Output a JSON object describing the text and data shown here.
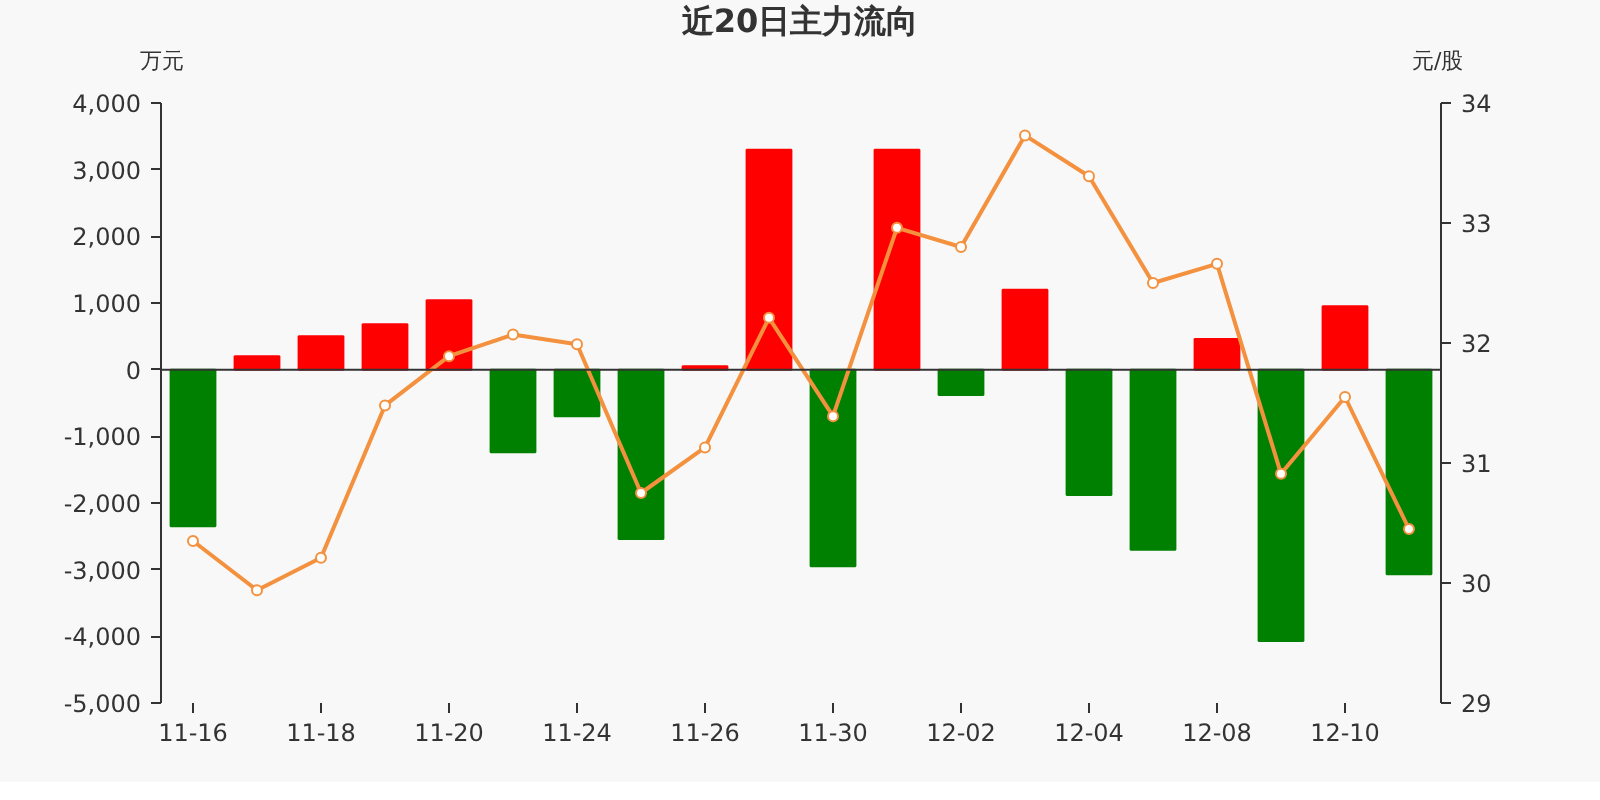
{
  "chart_data": {
    "type": "bar",
    "title": "近20日主力流向",
    "ylabel": "万元",
    "y2label": "元/股",
    "categories": [
      "11-16",
      null,
      "11-18",
      null,
      "11-20",
      null,
      "11-24",
      null,
      "11-26",
      null,
      "11-30",
      null,
      "12-02",
      null,
      "12-04",
      null,
      "12-08",
      null,
      "12-10",
      null
    ],
    "series": [
      {
        "values": [
          -2350,
          200,
          500,
          680,
          1040,
          -1240,
          -700,
          -2540,
          50,
          3300,
          -2950,
          3300,
          -380,
          1200,
          -1880,
          -2700,
          460,
          -4070,
          950,
          -3070
        ],
        "colors": [
          "#008000",
          "#ff0000",
          "#ff0000",
          "#ff0000",
          "#ff0000",
          "#008000",
          "#008000",
          "#008000",
          "#ff0000",
          "#ff0000",
          "#008000",
          "#ff0000",
          "#008000",
          "#ff0000",
          "#008000",
          "#008000",
          "#ff0000",
          "#008000",
          "#ff0000",
          "#008000"
        ]
      },
      {
        "type": "line",
        "axis": "y2",
        "color": "#f4913e",
        "marker": "circle",
        "values": [
          30.35,
          29.94,
          30.21,
          31.48,
          31.89,
          32.07,
          31.99,
          30.75,
          31.13,
          32.21,
          31.39,
          32.96,
          32.8,
          33.73,
          33.39,
          32.5,
          32.66,
          30.91,
          31.55,
          30.45
        ]
      }
    ],
    "ylim": [
      -5000,
      4000
    ],
    "yticks": [
      {
        "value": -5000,
        "label": "-5,000"
      },
      {
        "value": -4000,
        "label": "-4,000"
      },
      {
        "value": -3000,
        "label": "-3,000"
      },
      {
        "value": -2000,
        "label": "-2,000"
      },
      {
        "value": -1000,
        "label": "-1,000"
      },
      0,
      {
        "value": 1000,
        "label": "1,000"
      },
      {
        "value": 2000,
        "label": "2,000"
      },
      {
        "value": 3000,
        "label": "3,000"
      },
      {
        "value": 4000,
        "label": "4,000"
      }
    ],
    "y2lim": [
      29,
      34
    ],
    "y2ticks": [
      29,
      30,
      31,
      32,
      33,
      34
    ]
  }
}
